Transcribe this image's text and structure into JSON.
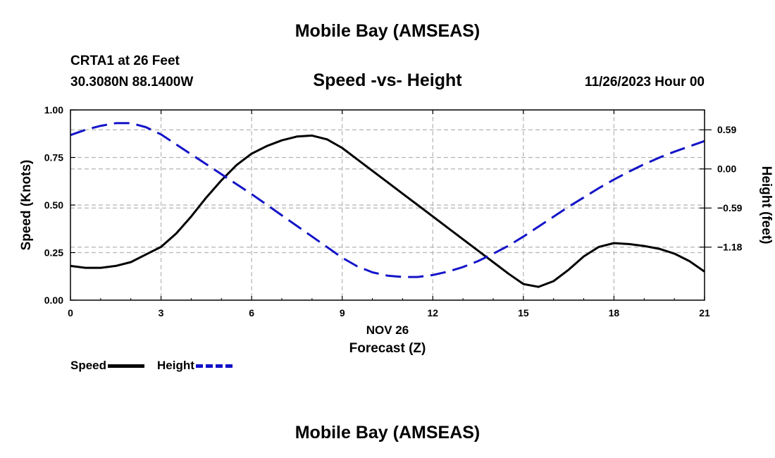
{
  "header": {
    "title": "Mobile Bay (AMSEAS)",
    "station": "CRTA1 at 26 Feet",
    "coords": "30.3080N  88.1400W",
    "subtitle": "Speed -vs- Height",
    "date": "11/26/2023 Hour 00"
  },
  "footer": {
    "title": "Mobile Bay (AMSEAS)"
  },
  "legend": {
    "speed": "Speed",
    "height": "Height"
  },
  "colors": {
    "speed": "#000000",
    "height": "#1414c8",
    "grid": "#b4b4b4"
  },
  "chart_data": {
    "type": "line",
    "title": "Speed -vs- Height",
    "xlabel": "Forecast (Z)",
    "xlabel_date": "NOV 26",
    "ylabel_left": "Speed (Knots)",
    "ylabel_right": "Height (feet)",
    "xlim": [
      0,
      21
    ],
    "ylim_left": [
      0,
      1.0
    ],
    "ylim_right": [
      -1.98,
      0.89
    ],
    "xticks": [
      0,
      3,
      6,
      9,
      12,
      15,
      18,
      21
    ],
    "xtick_labels": [
      "0",
      "3",
      "6",
      "9",
      "12",
      "15",
      "18",
      "21"
    ],
    "yticks_left": [
      0,
      0.25,
      0.5,
      0.75,
      1.0
    ],
    "ytick_labels_left": [
      "0.00",
      "0.25",
      "0.50",
      "0.75",
      "1.00"
    ],
    "yticks_right": [
      -1.18,
      -0.59,
      0.0,
      0.59
    ],
    "ytick_labels_right": [
      "−1.18",
      "−0.59",
      "0.00",
      "0.59"
    ],
    "grid": true,
    "series": [
      {
        "name": "Speed",
        "axis": "left",
        "style": "solid",
        "x": [
          0,
          0.5,
          1,
          1.5,
          2,
          2.5,
          3,
          3.5,
          4,
          4.5,
          5,
          5.5,
          6,
          6.5,
          7,
          7.5,
          8,
          8.5,
          9,
          9.5,
          10,
          10.5,
          11,
          11.5,
          12,
          12.5,
          13,
          13.5,
          14,
          14.5,
          15,
          15.5,
          16,
          16.5,
          17,
          17.5,
          18,
          18.5,
          19,
          19.5,
          20,
          20.5,
          21
        ],
        "values": [
          0.18,
          0.17,
          0.17,
          0.18,
          0.2,
          0.24,
          0.28,
          0.35,
          0.44,
          0.54,
          0.63,
          0.71,
          0.77,
          0.81,
          0.84,
          0.86,
          0.865,
          0.845,
          0.8,
          0.74,
          0.68,
          0.62,
          0.56,
          0.5,
          0.44,
          0.38,
          0.32,
          0.26,
          0.2,
          0.14,
          0.085,
          0.07,
          0.1,
          0.16,
          0.23,
          0.28,
          0.3,
          0.295,
          0.285,
          0.27,
          0.245,
          0.205,
          0.15
        ]
      },
      {
        "name": "Height",
        "axis": "right",
        "style": "dashed",
        "x": [
          0,
          0.5,
          1,
          1.5,
          2,
          2.5,
          3,
          3.5,
          4,
          4.5,
          5,
          5.5,
          6,
          6.5,
          7,
          7.5,
          8,
          8.5,
          9,
          9.5,
          10,
          10.5,
          11,
          11.5,
          12,
          12.5,
          13,
          13.5,
          14,
          14.5,
          15,
          15.5,
          16,
          16.5,
          17,
          17.5,
          18,
          18.5,
          19,
          19.5,
          20,
          20.5,
          21
        ],
        "values": [
          0.51,
          0.59,
          0.65,
          0.69,
          0.69,
          0.63,
          0.52,
          0.37,
          0.22,
          0.07,
          -0.08,
          -0.23,
          -0.38,
          -0.54,
          -0.7,
          -0.86,
          -1.02,
          -1.18,
          -1.34,
          -1.47,
          -1.56,
          -1.61,
          -1.63,
          -1.63,
          -1.6,
          -1.55,
          -1.48,
          -1.39,
          -1.28,
          -1.16,
          -1.02,
          -0.87,
          -0.72,
          -0.57,
          -0.43,
          -0.29,
          -0.16,
          -0.04,
          0.07,
          0.17,
          0.26,
          0.34,
          0.42
        ]
      }
    ]
  }
}
